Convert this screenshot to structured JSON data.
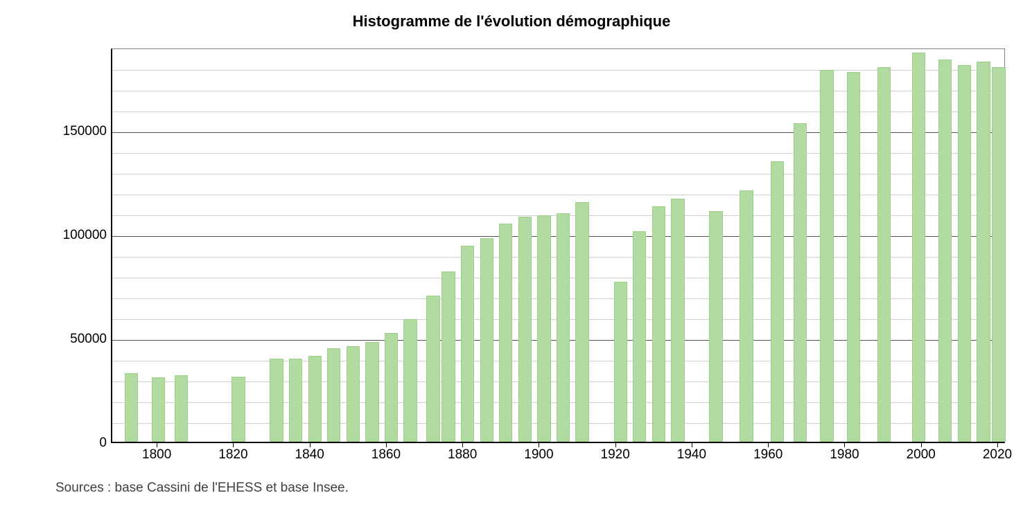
{
  "chart": {
    "type": "bar",
    "title": "Histogramme de l'évolution démographique",
    "title_fontsize": 22,
    "title_fontweight": "bold",
    "source": "Sources : base Cassini de l'EHESS et base Insee.",
    "source_fontsize": 19,
    "background_color": "#ffffff",
    "bar_fill_color": "#b2dba1",
    "bar_border_color": "#9ccf87",
    "axis_color": "#000000",
    "major_grid_color": "#505050",
    "minor_grid_color": "#d0d0d0",
    "plot_border_color": "#808080",
    "label_fontsize": 19,
    "x_axis": {
      "min": 1788,
      "max": 2022,
      "tick_step": 20,
      "tick_labels": [
        1800,
        1820,
        1840,
        1860,
        1880,
        1900,
        1920,
        1940,
        1960,
        1980,
        2000,
        2020
      ]
    },
    "y_axis": {
      "min": 0,
      "max": 190000,
      "major_tick_step": 50000,
      "minor_tick_step": 10000,
      "tick_labels": [
        0,
        50000,
        100000,
        150000
      ]
    },
    "bar_width_years": 3.5,
    "bars": [
      {
        "year": 1793,
        "value": 33000
      },
      {
        "year": 1800,
        "value": 31000
      },
      {
        "year": 1806,
        "value": 32000
      },
      {
        "year": 1821,
        "value": 31500
      },
      {
        "year": 1831,
        "value": 40000
      },
      {
        "year": 1836,
        "value": 40000
      },
      {
        "year": 1841,
        "value": 41500
      },
      {
        "year": 1846,
        "value": 45000
      },
      {
        "year": 1851,
        "value": 46000
      },
      {
        "year": 1856,
        "value": 48000
      },
      {
        "year": 1861,
        "value": 52500
      },
      {
        "year": 1866,
        "value": 59000
      },
      {
        "year": 1872,
        "value": 70500
      },
      {
        "year": 1876,
        "value": 82000
      },
      {
        "year": 1881,
        "value": 94500
      },
      {
        "year": 1886,
        "value": 98000
      },
      {
        "year": 1891,
        "value": 105000
      },
      {
        "year": 1896,
        "value": 108500
      },
      {
        "year": 1901,
        "value": 109000
      },
      {
        "year": 1906,
        "value": 110000
      },
      {
        "year": 1911,
        "value": 115500
      },
      {
        "year": 1921,
        "value": 77000
      },
      {
        "year": 1926,
        "value": 101500
      },
      {
        "year": 1931,
        "value": 113500
      },
      {
        "year": 1936,
        "value": 117000
      },
      {
        "year": 1946,
        "value": 111000
      },
      {
        "year": 1954,
        "value": 121000
      },
      {
        "year": 1962,
        "value": 135000
      },
      {
        "year": 1968,
        "value": 153500
      },
      {
        "year": 1975,
        "value": 179000
      },
      {
        "year": 1982,
        "value": 178000
      },
      {
        "year": 1990,
        "value": 180500
      },
      {
        "year": 1999,
        "value": 187500
      },
      {
        "year": 2006,
        "value": 184000
      },
      {
        "year": 2011,
        "value": 181500
      },
      {
        "year": 2016,
        "value": 183000
      },
      {
        "year": 2020,
        "value": 180500
      }
    ]
  }
}
